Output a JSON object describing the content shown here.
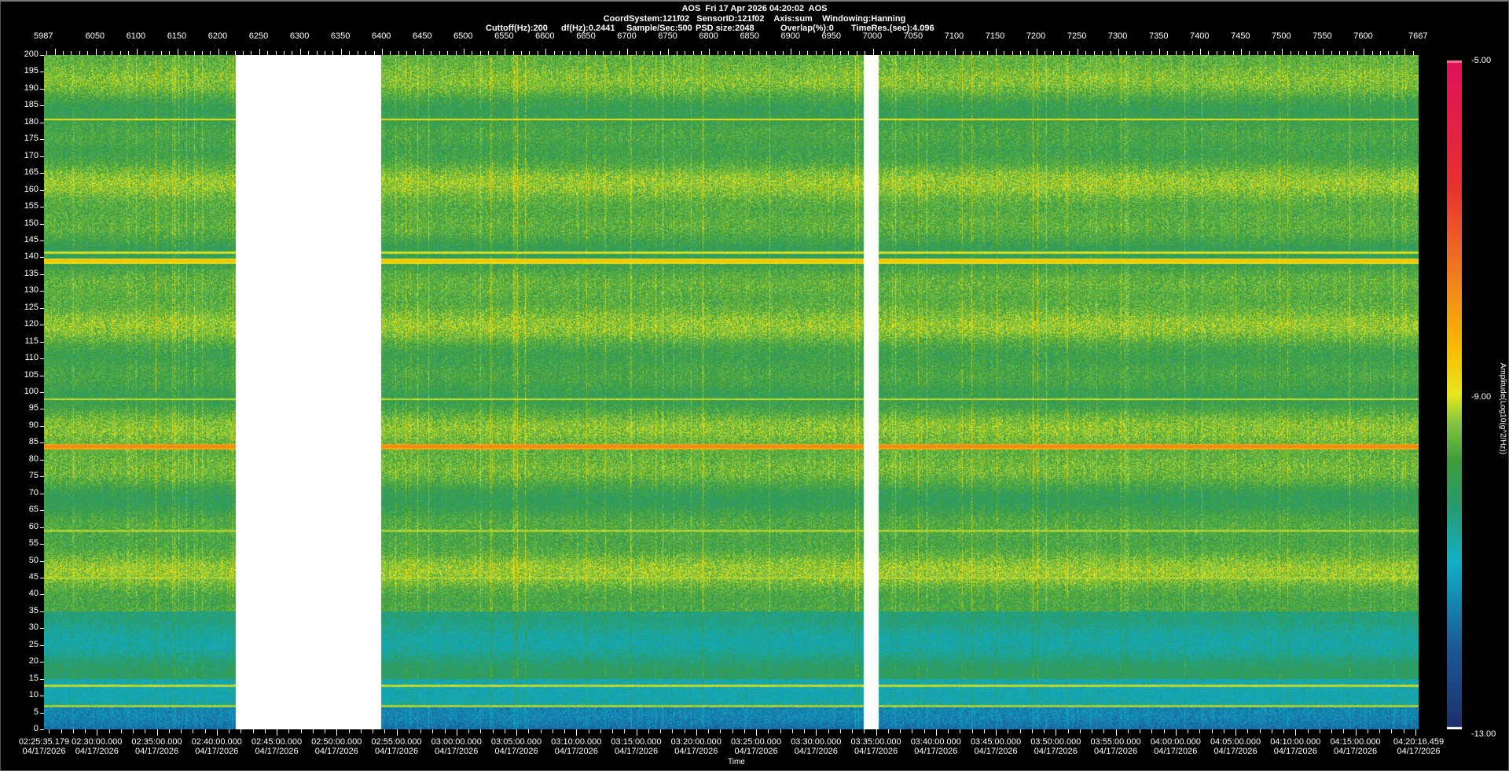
{
  "header": {
    "title": "AOS  Fri 17 Apr 2026 04:20:02  AOS",
    "line2": "CoordSystem:121f02   SensorID:121f02    Axis:sum    Windowing:Hanning",
    "params": [
      "Cuttoff(Hz):200",
      "df(Hz):0.2441",
      "Sample/Sec:500",
      "PSD size:2048",
      "Overlap(%):0",
      "TimeRes.(sec):4.096"
    ]
  },
  "chart_data": {
    "type": "heatmap",
    "title": "AOS  Fri 17 Apr 2026 04:20:02  AOS",
    "xlabel": "Time",
    "ylabel": "",
    "colorbar_label": "Amplitude(Log10(g^2/Hz))",
    "colorbar_range": [
      -13.0,
      -5.0
    ],
    "colorbar_ticks": [
      "-5.00",
      "-9.00",
      "-13.00"
    ],
    "colormap": [
      "#1c2f6b",
      "#1a5a9a",
      "#10b0c8",
      "#2a9a6a",
      "#3c9c3c",
      "#8cc840",
      "#e8e81c",
      "#f8c000",
      "#f07820",
      "#e83030",
      "#e0105a"
    ],
    "ylim": [
      0,
      200
    ],
    "y_ticks": [
      0,
      5,
      10,
      15,
      20,
      25,
      30,
      35,
      40,
      45,
      50,
      55,
      60,
      65,
      70,
      75,
      80,
      85,
      90,
      95,
      100,
      105,
      110,
      115,
      120,
      125,
      130,
      135,
      140,
      145,
      150,
      155,
      160,
      165,
      170,
      175,
      180,
      185,
      190,
      195,
      200
    ],
    "top_axis_range": [
      5987,
      7667
    ],
    "top_axis_ticks": [
      "5987",
      "6050",
      "6100",
      "6150",
      "6200",
      "6250",
      "6300",
      "6350",
      "6400",
      "6450",
      "6500",
      "6550",
      "6600",
      "6650",
      "6700",
      "6750",
      "6800",
      "6850",
      "6900",
      "6950",
      "7000",
      "7050",
      "7100",
      "7150",
      "7200",
      "7250",
      "7300",
      "7350",
      "7400",
      "7450",
      "7500",
      "7550",
      "7600",
      "7667"
    ],
    "time_ticks": [
      "02:25:35.179",
      "02:30:00.000",
      "02:35:00.000",
      "02:40:00.000",
      "02:45:00.000",
      "02:50:00.000",
      "02:55:00.000",
      "03:00:00.000",
      "03:05:00.000",
      "03:10:00.000",
      "03:15:00.000",
      "03:20:00.000",
      "03:25:00.000",
      "03:30:00.000",
      "03:35:00.000",
      "03:40:00.000",
      "03:45:00.000",
      "03:50:00.000",
      "03:55:00.000",
      "04:00:00.000",
      "04:05:00.000",
      "04:10:00.000",
      "04:15:00.000",
      "04:20:16.459"
    ],
    "date_label": "04/17/2026",
    "data_gaps_samples": [
      [
        6221,
        6399
      ],
      [
        6988,
        7007
      ]
    ],
    "background_level_by_band": [
      {
        "band_hz": [
          0,
          7
        ],
        "level": -11.8
      },
      {
        "band_hz": [
          7,
          15
        ],
        "level": -11.0
      },
      {
        "band_hz": [
          15,
          35
        ],
        "level": -10.4
      },
      {
        "band_hz": [
          35,
          200
        ],
        "level": -9.7
      }
    ],
    "persistent_lines": [
      {
        "freq_hz": 84,
        "level": -7.6
      },
      {
        "freq_hz": 139,
        "level": -8.4
      },
      {
        "freq_hz": 141.5,
        "level": -8.9
      },
      {
        "freq_hz": 181,
        "level": -8.8
      },
      {
        "freq_hz": 98,
        "level": -9.0
      },
      {
        "freq_hz": 13,
        "level": -9.0
      },
      {
        "freq_hz": 7,
        "level": -9.1
      },
      {
        "freq_hz": 59,
        "level": -9.1
      },
      {
        "freq_hz": 45,
        "level": -9.2
      }
    ]
  }
}
